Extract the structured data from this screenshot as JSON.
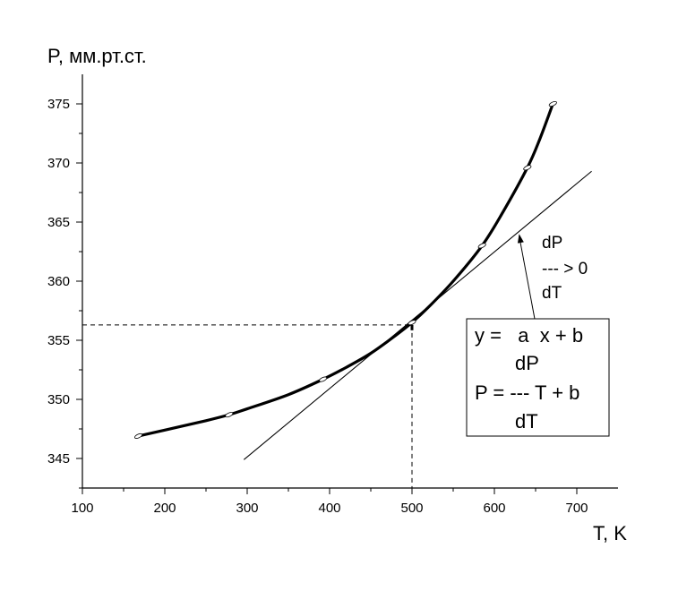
{
  "chart_data": {
    "type": "line",
    "xlabel": "T, K",
    "ylabel": "P, мм.рт.ст.",
    "xlim": [
      100,
      750
    ],
    "ylim": [
      342.5,
      377.5
    ],
    "x_ticks": [
      100,
      200,
      300,
      400,
      500,
      600,
      700
    ],
    "y_ticks": [
      345,
      350,
      355,
      360,
      365,
      370,
      375
    ],
    "grid": false,
    "series": [
      {
        "style": "curve",
        "x": [
          168,
          200,
          250,
          278,
          300,
          350,
          392,
          420,
          450,
          480,
          500,
          520,
          550,
          585,
          610,
          640,
          655,
          671
        ],
        "y": [
          346.9,
          347.4,
          348.2,
          348.7,
          349.2,
          350.4,
          351.7,
          352.7,
          353.9,
          355.4,
          356.5,
          357.8,
          360.0,
          363.0,
          365.8,
          369.6,
          372.0,
          375.0
        ]
      },
      {
        "style": "tangent",
        "x": [
          296,
          718
        ],
        "y": [
          344.9,
          369.3
        ]
      }
    ],
    "markers": {
      "x": [
        168,
        278,
        392,
        500,
        585,
        640,
        671
      ],
      "y": [
        346.9,
        348.7,
        351.7,
        356.5,
        363.0,
        369.6,
        375.0
      ]
    },
    "reference_point": {
      "x": 500,
      "y": 356.3
    },
    "annotations": {
      "derivative": [
        "dP",
        "--- > 0",
        "dT"
      ],
      "arrow_tip": {
        "x": 630,
        "y": 364.0
      },
      "box_lines": [
        "y =   a  x + b",
        "dP",
        "P = --- T + b",
        "dT"
      ]
    }
  }
}
